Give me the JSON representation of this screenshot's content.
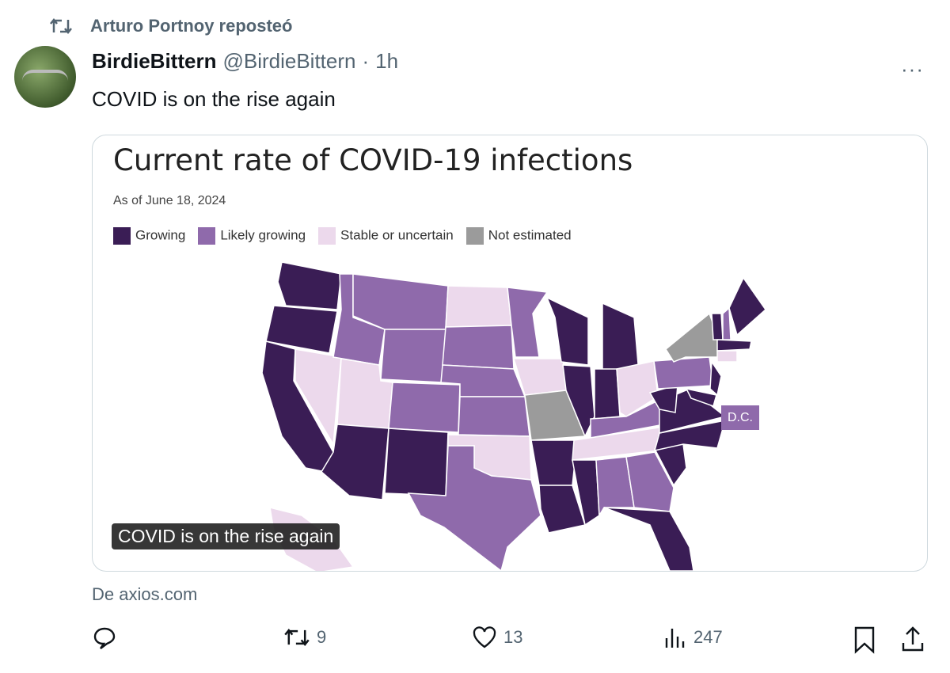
{
  "repost": {
    "label": "Arturo Portnoy reposteó"
  },
  "tweet": {
    "name": "BirdieBittern",
    "handle": "@BirdieBittern",
    "sep": "·",
    "time": "1h",
    "text": "COVID is on the rise again",
    "more": "···",
    "source": "De axios.com"
  },
  "card": {
    "title": "Current rate of COVID-19 infections",
    "as_of": "As of June 18, 2024",
    "dc_label": "D.C.",
    "caption": "COVID is on the rise again",
    "legend": [
      {
        "label": "Growing",
        "key": "g"
      },
      {
        "label": "Likely growing",
        "key": "l"
      },
      {
        "label": "Stable or uncertain",
        "key": "s"
      },
      {
        "label": "Not estimated",
        "key": "n"
      }
    ],
    "colors": {
      "g": "#3a1d55",
      "l": "#8f6aab",
      "s": "#ecd9ec",
      "n": "#9b9b9b"
    },
    "states": {
      "WA": "g",
      "OR": "g",
      "CA": "g",
      "NV": "s",
      "ID": "l",
      "MT": "l",
      "WY": "l",
      "UT": "s",
      "CO": "l",
      "AZ": "g",
      "NM": "g",
      "ND": "s",
      "SD": "l",
      "NE": "l",
      "KS": "l",
      "OK": "s",
      "TX": "l",
      "MN": "l",
      "IA": "s",
      "MO": "n",
      "AR": "g",
      "LA": "g",
      "WI": "g",
      "IL": "g",
      "MI": "g",
      "IN": "g",
      "OH": "s",
      "KY": "l",
      "TN": "s",
      "MS": "g",
      "AL": "l",
      "GA": "l",
      "FL": "g",
      "SC": "g",
      "NC": "g",
      "VA": "g",
      "WV": "g",
      "PA": "l",
      "NY": "n",
      "NJ": "g",
      "MD": "g",
      "VT": "g",
      "NH": "l",
      "ME": "g",
      "MA": "g",
      "CT": "s",
      "AK": "s",
      "DC": "l"
    }
  },
  "actions": {
    "retweets": "9",
    "likes": "13",
    "views": "247"
  }
}
